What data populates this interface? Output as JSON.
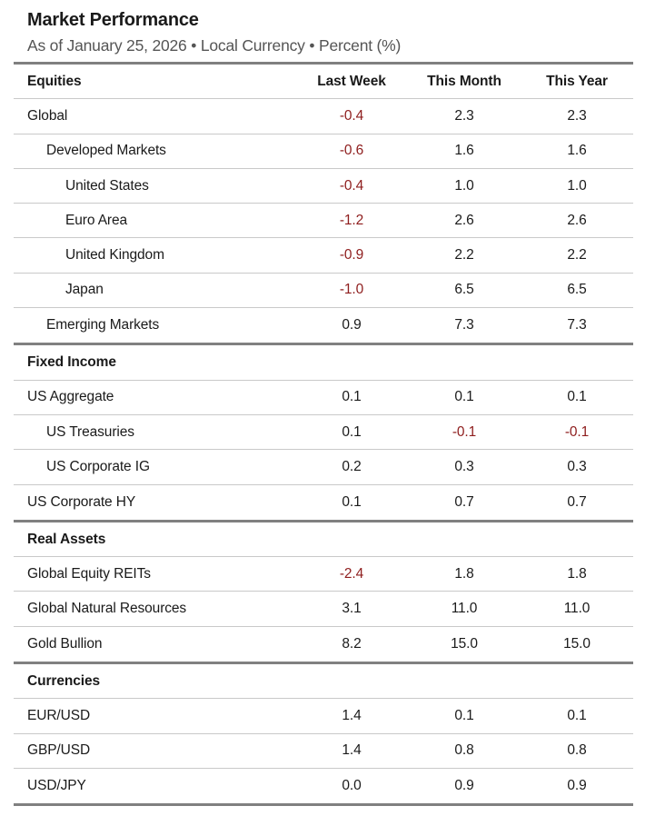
{
  "header": {
    "title": "Market Performance",
    "subtitle": "As of January 25, 2026 • Local Currency • Percent (%)"
  },
  "colors": {
    "text": "#1a1a1a",
    "subtitle_gray": "#555555",
    "negative_red": "#8e1d1d",
    "thick_rule_gray": "#808080",
    "thin_rule_gray": "#c9c9c9"
  },
  "chart_data": {
    "type": "table",
    "title": "Market Performance",
    "subtitle": "As of January 25, 2026 • Local Currency • Percent (%)",
    "columns": [
      "Last Week",
      "This Month",
      "This Year"
    ],
    "value_unit": "percent",
    "negative_values_shown_in": "dark red",
    "sections": [
      {
        "label": "Equities",
        "shows_column_headers": true,
        "rows": [
          {
            "label": "Global",
            "indent": 0,
            "values": [
              "-0.4",
              "2.3",
              "2.3"
            ]
          },
          {
            "label": "Developed Markets",
            "indent": 1,
            "values": [
              "-0.6",
              "1.6",
              "1.6"
            ]
          },
          {
            "label": "United States",
            "indent": 2,
            "values": [
              "-0.4",
              "1.0",
              "1.0"
            ]
          },
          {
            "label": "Euro Area",
            "indent": 2,
            "values": [
              "-1.2",
              "2.6",
              "2.6"
            ]
          },
          {
            "label": "United Kingdom",
            "indent": 2,
            "values": [
              "-0.9",
              "2.2",
              "2.2"
            ]
          },
          {
            "label": "Japan",
            "indent": 2,
            "values": [
              "-1.0",
              "6.5",
              "6.5"
            ]
          },
          {
            "label": "Emerging Markets",
            "indent": 1,
            "values": [
              "0.9",
              "7.3",
              "7.3"
            ]
          }
        ]
      },
      {
        "label": "Fixed Income",
        "shows_column_headers": false,
        "rows": [
          {
            "label": "US Aggregate",
            "indent": 0,
            "values": [
              "0.1",
              "0.1",
              "0.1"
            ]
          },
          {
            "label": "US Treasuries",
            "indent": 1,
            "values": [
              "0.1",
              "-0.1",
              "-0.1"
            ]
          },
          {
            "label": "US Corporate IG",
            "indent": 1,
            "values": [
              "0.2",
              "0.3",
              "0.3"
            ]
          },
          {
            "label": "US Corporate HY",
            "indent": 0,
            "values": [
              "0.1",
              "0.7",
              "0.7"
            ]
          }
        ]
      },
      {
        "label": "Real Assets",
        "shows_column_headers": false,
        "rows": [
          {
            "label": "Global Equity REITs",
            "indent": 0,
            "values": [
              "-2.4",
              "1.8",
              "1.8"
            ]
          },
          {
            "label": "Global Natural Resources",
            "indent": 0,
            "values": [
              "3.1",
              "11.0",
              "11.0"
            ]
          },
          {
            "label": "Gold Bullion",
            "indent": 0,
            "values": [
              "8.2",
              "15.0",
              "15.0"
            ]
          }
        ]
      },
      {
        "label": "Currencies",
        "shows_column_headers": false,
        "rows": [
          {
            "label": "EUR/USD",
            "indent": 0,
            "values": [
              "1.4",
              "0.1",
              "0.1"
            ]
          },
          {
            "label": "GBP/USD",
            "indent": 0,
            "values": [
              "1.4",
              "0.8",
              "0.8"
            ]
          },
          {
            "label": "USD/JPY",
            "indent": 0,
            "values": [
              "0.0",
              "0.9",
              "0.9"
            ]
          }
        ]
      }
    ]
  }
}
